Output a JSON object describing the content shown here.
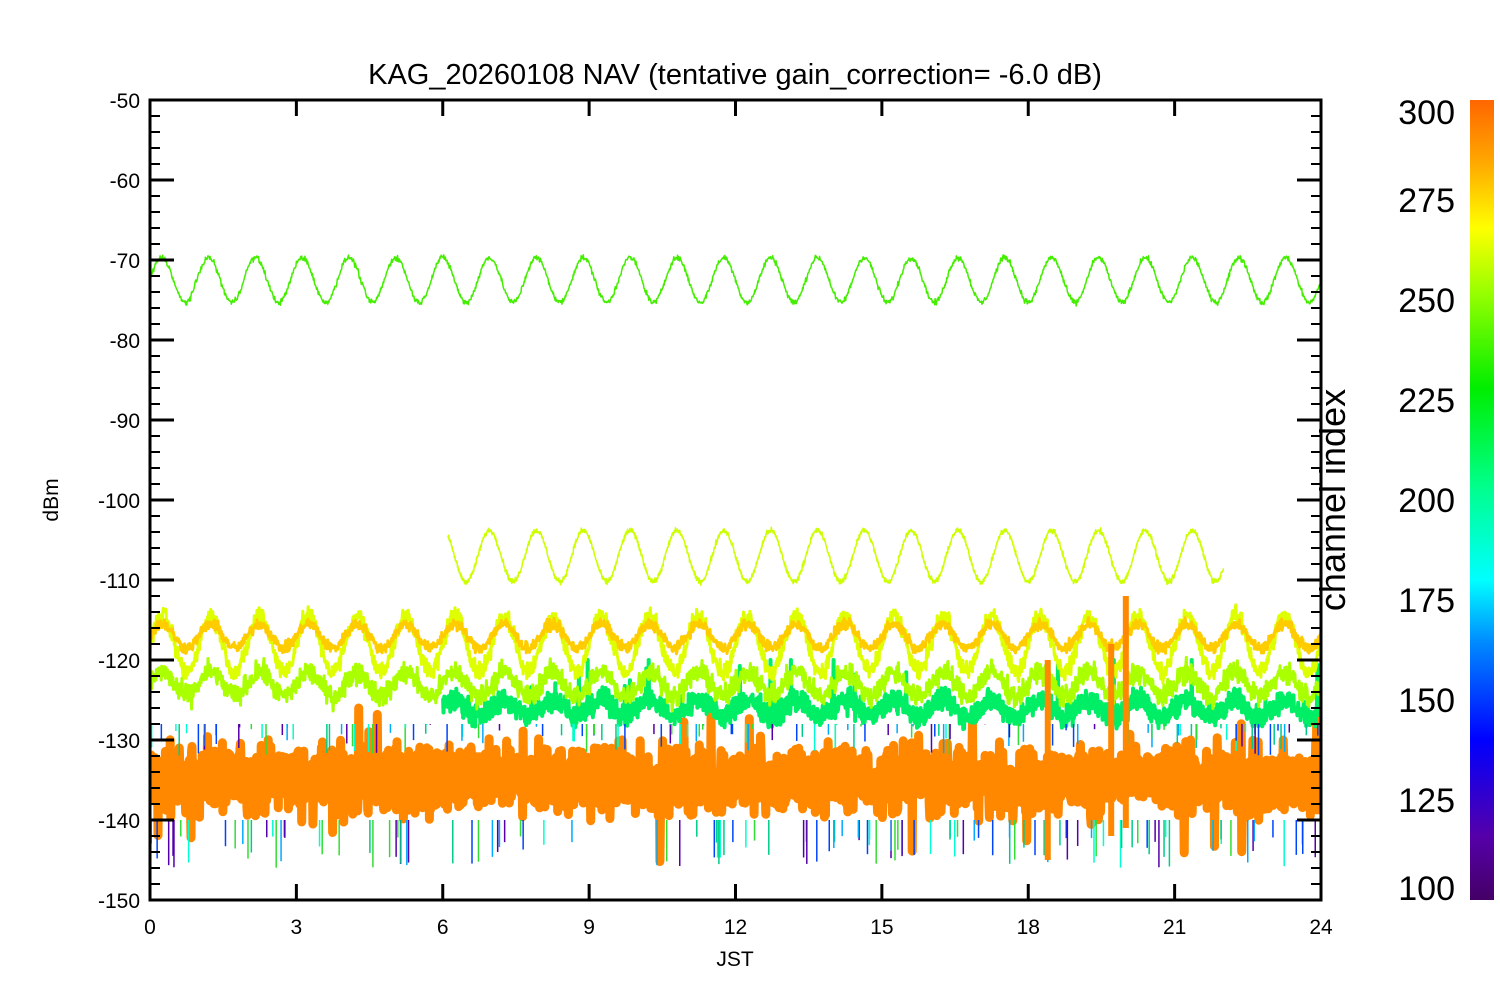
{
  "chart_data": {
    "type": "line",
    "title": "KAG_20260108 NAV (tentative gain_correction= -6.0 dB)",
    "xlabel": "JST",
    "ylabel": "dBm",
    "xlim": [
      0,
      24
    ],
    "ylim": [
      -150,
      -50
    ],
    "xticks": [
      0,
      3,
      6,
      9,
      12,
      15,
      18,
      21,
      24
    ],
    "yticks": [
      -50,
      -60,
      -70,
      -80,
      -90,
      -100,
      -110,
      -120,
      -130,
      -140,
      -150
    ],
    "colorbar": {
      "label": "channel index",
      "range": [
        100,
        300
      ],
      "ticks": [
        300,
        275,
        250,
        225,
        200,
        175,
        150,
        125,
        100
      ],
      "colorscale": "rainbow"
    },
    "series": [
      {
        "channel": 245,
        "color": "#44ee00",
        "baseline": -72.5,
        "amplitude": 2.8,
        "period_h": 0.96,
        "noise": 0.3,
        "x_range": [
          0,
          24
        ],
        "y_range": [
          -75.5,
          -69.5
        ]
      },
      {
        "channel": 262,
        "color": "#ccff00",
        "baseline": -107,
        "amplitude": 3.2,
        "period_h": 0.96,
        "noise": 0.3,
        "x_range": [
          6.1,
          22
        ],
        "y_range": [
          -110.5,
          -103.5
        ]
      },
      {
        "channel": 265,
        "color": "#ddff00",
        "baseline": -118,
        "amplitude": 3.5,
        "period_h": 1.0,
        "noise": 1.0,
        "x_range": [
          0,
          24
        ],
        "y_range": [
          -122,
          -114
        ]
      },
      {
        "channel": 258,
        "color": "#aaff00",
        "baseline": -123,
        "amplitude": 1.5,
        "period_h": 1.0,
        "noise": 1.2,
        "x_range": [
          0,
          24
        ],
        "y_range": [
          -126,
          -117
        ]
      },
      {
        "channel": 285,
        "color": "#ffcc00",
        "baseline": -117,
        "amplitude": 1.5,
        "period_h": 1.0,
        "noise": 0.6,
        "x_range": [
          0,
          24
        ],
        "y_range": [
          -120,
          -115
        ]
      },
      {
        "channel": 210,
        "color": "#00ee66",
        "baseline": -126,
        "amplitude": 1.0,
        "period_h": 1.0,
        "noise": 1.2,
        "x_range": [
          6,
          24
        ],
        "y_range": [
          -130,
          -122
        ]
      },
      {
        "channel": 290,
        "color": "#ff8800",
        "baseline": -135,
        "amplitude": 0,
        "period_h": 1.0,
        "noise": 3.5,
        "x_range": [
          0,
          24
        ],
        "y_range": [
          -145,
          -128
        ]
      }
    ],
    "events": [
      {
        "x": 18.4,
        "y_range": [
          -120,
          -145
        ]
      },
      {
        "x": 20.0,
        "y_range": [
          -112,
          -141
        ]
      },
      {
        "x": 19.7,
        "y_range": [
          -118,
          -142
        ]
      }
    ]
  }
}
